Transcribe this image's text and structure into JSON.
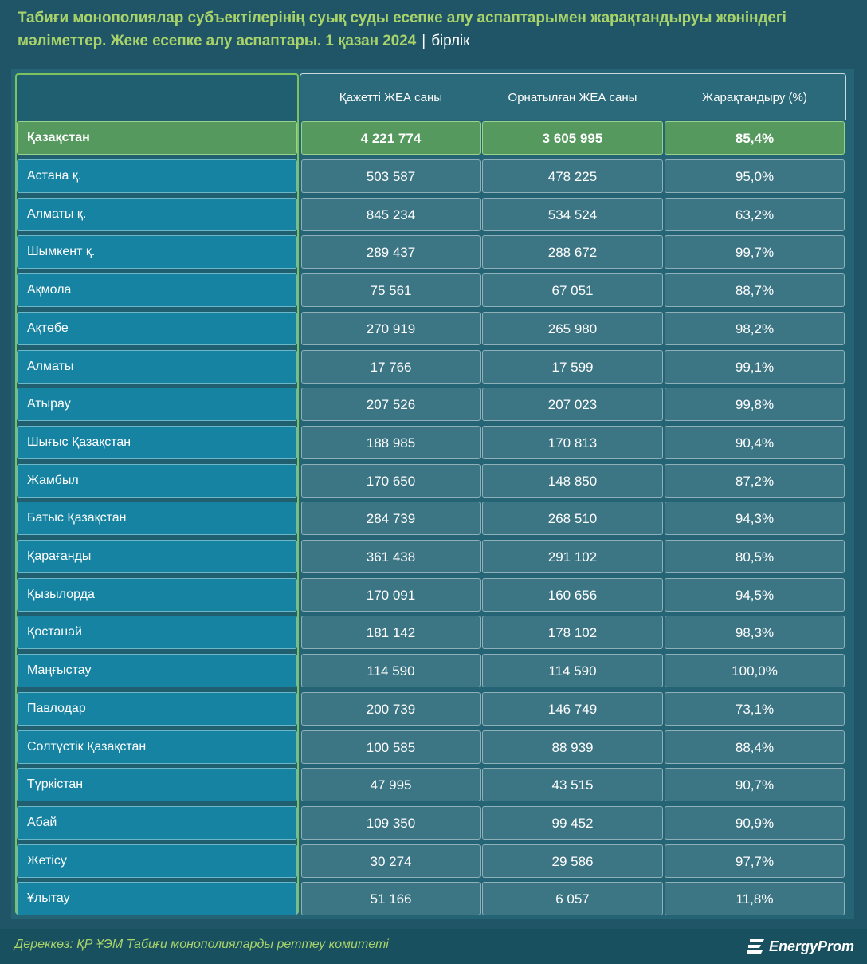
{
  "header": {
    "title": "Табиғи монополиялар субъектілерінің суық суды есепке алу аспаптарымен жарақтандыруы жөніндегі мәліметтер. Жеке есепке алу аспаптары. 1 қазан 2024",
    "separator": "|",
    "unit": "бірлік"
  },
  "table": {
    "columns": [
      "Қажетті ЖЕА саны",
      "Орнатылған  ЖЕА саны",
      "Жарақтандыру (%)"
    ],
    "total": {
      "name": "Қазақстан",
      "required": "4 221 774",
      "installed": "3 605 995",
      "percent": "85,4%"
    },
    "rows": [
      {
        "name": "Астана қ.",
        "required": "503 587",
        "installed": "478 225",
        "percent": "95,0%"
      },
      {
        "name": "Алматы қ.",
        "required": "845 234",
        "installed": "534 524",
        "percent": "63,2%"
      },
      {
        "name": "Шымкент қ.",
        "required": "289 437",
        "installed": "288 672",
        "percent": "99,7%"
      },
      {
        "name": "Ақмола",
        "required": "75 561",
        "installed": "67 051",
        "percent": "88,7%"
      },
      {
        "name": "Ақтөбе",
        "required": "270 919",
        "installed": "265 980",
        "percent": "98,2%"
      },
      {
        "name": "Алматы",
        "required": "17 766",
        "installed": "17 599",
        "percent": "99,1%"
      },
      {
        "name": "Атырау",
        "required": "207 526",
        "installed": "207 023",
        "percent": "99,8%"
      },
      {
        "name": "Шығыс Қазақстан",
        "required": "188 985",
        "installed": "170 813",
        "percent": "90,4%"
      },
      {
        "name": "Жамбыл",
        "required": "170 650",
        "installed": "148 850",
        "percent": "87,2%"
      },
      {
        "name": "Батыс Қазақстан",
        "required": "284 739",
        "installed": "268 510",
        "percent": "94,3%"
      },
      {
        "name": "Қарағанды",
        "required": "361 438",
        "installed": "291 102",
        "percent": "80,5%"
      },
      {
        "name": "Қызылорда",
        "required": "170 091",
        "installed": "160 656",
        "percent": "94,5%"
      },
      {
        "name": "Қостанай",
        "required": "181 142",
        "installed": "178 102",
        "percent": "98,3%"
      },
      {
        "name": "Маңғыстау",
        "required": "114 590",
        "installed": "114 590",
        "percent": "100,0%"
      },
      {
        "name": "Павлодар",
        "required": "200 739",
        "installed": "146 749",
        "percent": "73,1%"
      },
      {
        "name": "Солтүстік Қазақстан",
        "required": "100 585",
        "installed": "88 939",
        "percent": "88,4%"
      },
      {
        "name": "Түркістан",
        "required": "47 995",
        "installed": "43 515",
        "percent": "90,7%"
      },
      {
        "name": "Абай",
        "required": "109 350",
        "installed": "99 452",
        "percent": "90,9%"
      },
      {
        "name": "Жетісу",
        "required": "30 274",
        "installed": "29 586",
        "percent": "97,7%"
      },
      {
        "name": "Ұлытау",
        "required": "51 166",
        "installed": "6 057",
        "percent": "11,8%"
      }
    ]
  },
  "footer": {
    "source": "Дереккөз: ҚР ҰЭМ Табиғи монополияларды реттеу комитеті",
    "logo_text": "EnergyProm"
  },
  "colors": {
    "background": "#1f5566",
    "title_green": "#a8d36a",
    "total_row": "#55995e",
    "name_cell": "#1783a3",
    "value_cell": "#3c7584"
  },
  "icons": {
    "logo": "energyprom-logo-icon"
  }
}
